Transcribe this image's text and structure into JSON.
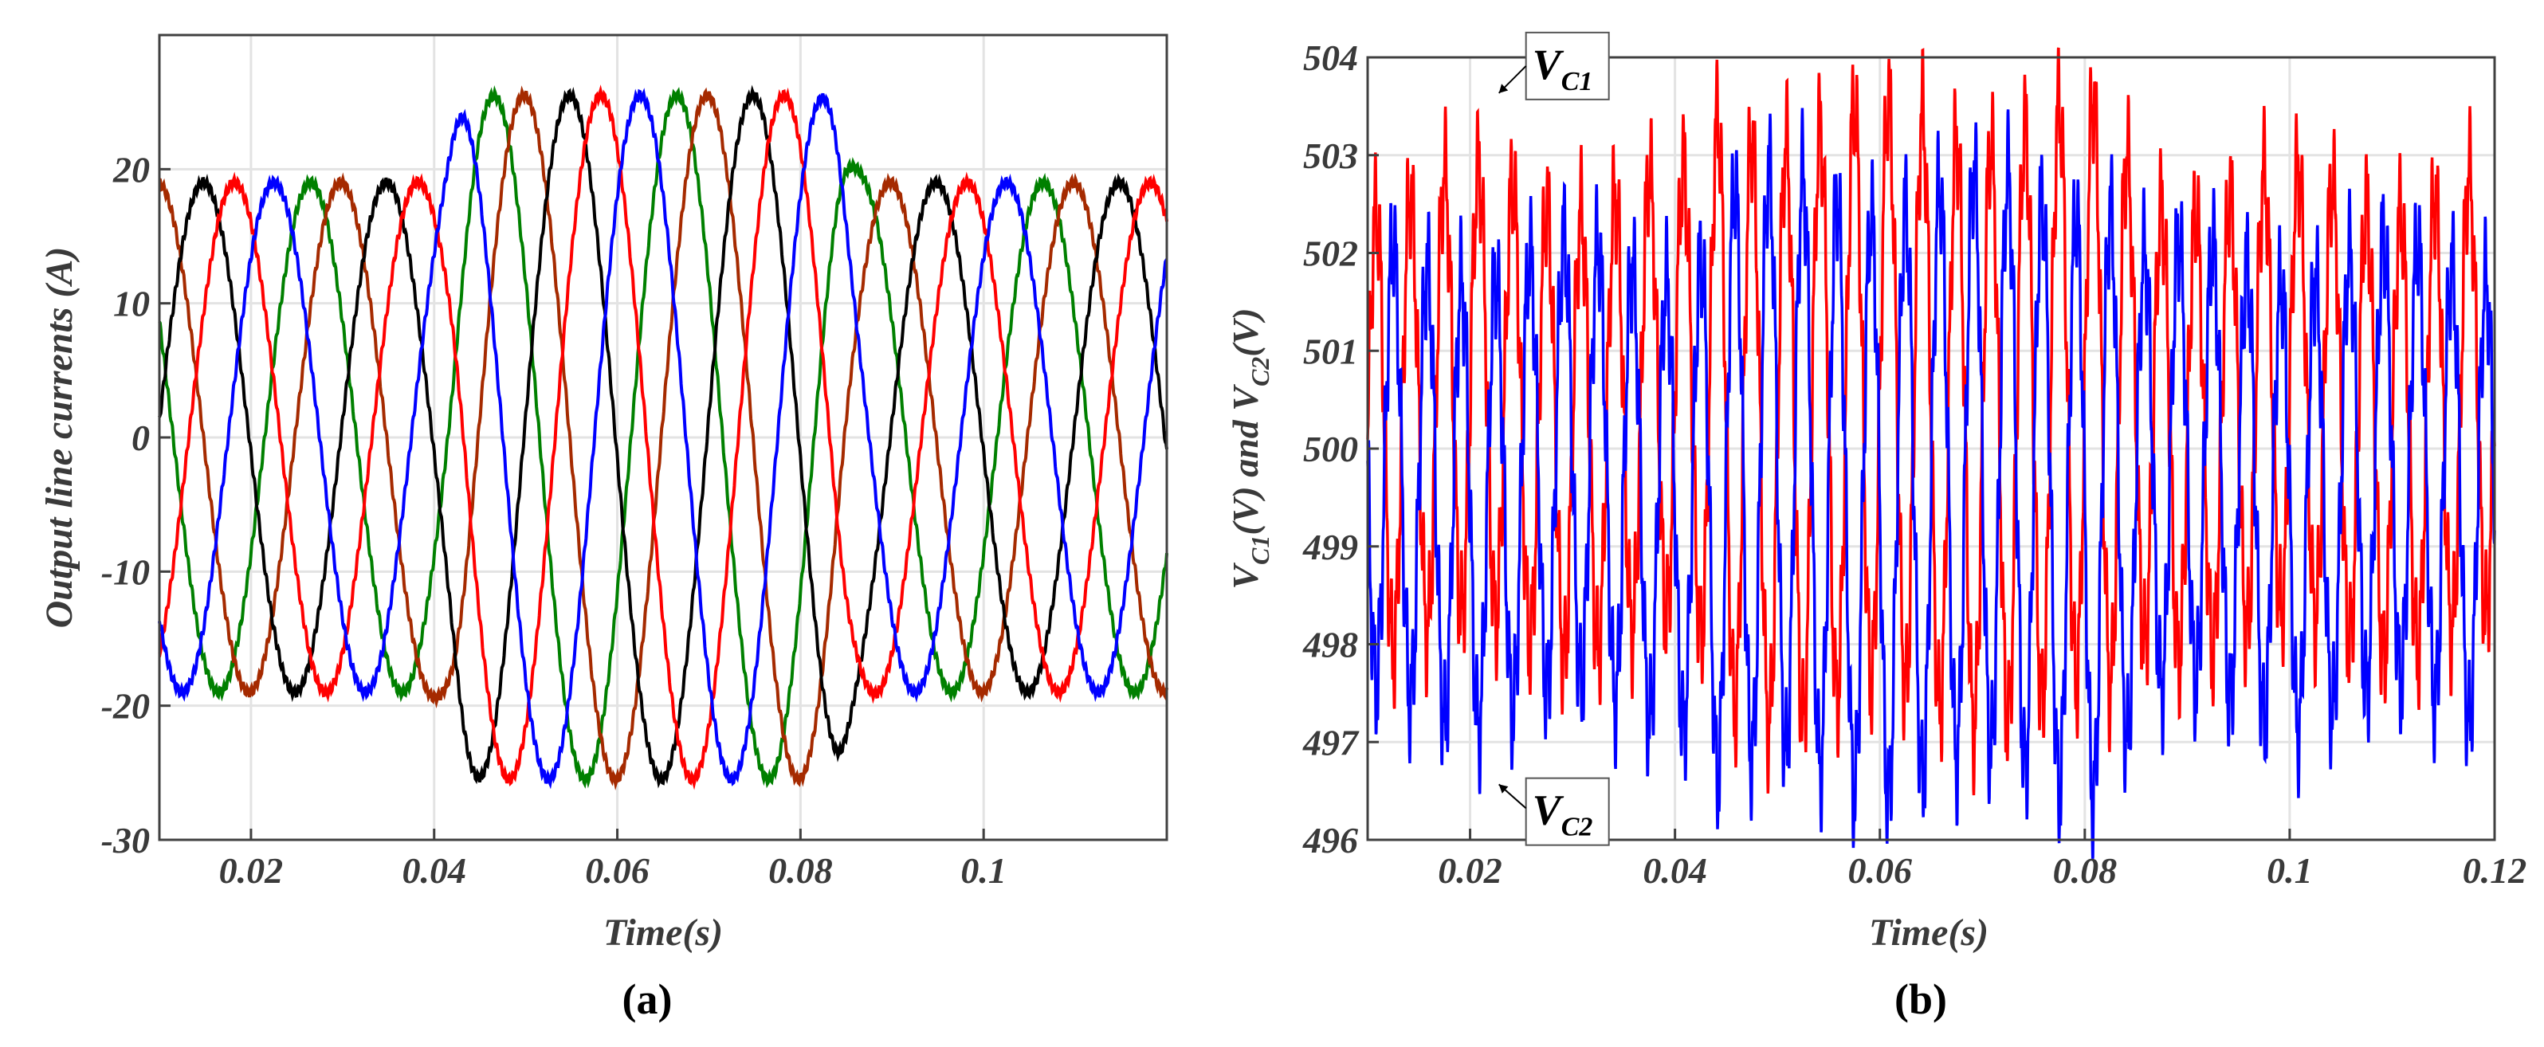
{
  "colors": {
    "blue": "#0000ff",
    "red": "#ff0000",
    "green": "#008000",
    "brown": "#a52a00",
    "black": "#000000",
    "grid": "#e3e3e3",
    "axis": "#404040"
  },
  "chart_data": [
    {
      "type": "line",
      "panel_label": "(a)",
      "xlabel": "Time(s)",
      "ylabel": "Output line currents (A)",
      "xlim": [
        0.01,
        0.12
      ],
      "ylim": [
        -30,
        30
      ],
      "xticks": [
        0.02,
        0.04,
        0.06,
        0.08,
        0.1
      ],
      "xtick_labels": [
        "0.02",
        "0.04",
        "0.06",
        "0.08",
        "0.1"
      ],
      "yticks": [
        -30,
        -20,
        -10,
        0,
        10,
        20
      ],
      "ytick_labels": [
        "-30",
        "-20",
        "-10",
        "0",
        "10",
        "20"
      ],
      "grid": true,
      "frequency_hz": 50,
      "amplitude_before": 19,
      "amplitude_during": 25.5,
      "amplitude_after": 19,
      "disturbance_interval_s": [
        0.04,
        0.085
      ],
      "series": [
        {
          "color": "#008000",
          "peak_time_s": 0.0265
        },
        {
          "color": "#a52a00",
          "peak_time_s": 0.0298
        },
        {
          "color": "#000000",
          "peak_time_s": 0.0348
        },
        {
          "color": "#ff0000",
          "peak_time_s": 0.0182
        },
        {
          "color": "#0000ff",
          "peak_time_s": 0.0225
        }
      ]
    },
    {
      "type": "line",
      "panel_label": "(b)",
      "xlabel": "Time(s)",
      "ylabel": "V_C1(V) and V_C2(V)",
      "ylabel_parts": {
        "v1": "V",
        "s1": "C1",
        "m1": "(V) and ",
        "v2": "V",
        "s2": "C2",
        "m2": "(V)"
      },
      "xlim": [
        0.01,
        0.12
      ],
      "ylim": [
        496,
        504
      ],
      "xticks": [
        0.02,
        0.04,
        0.06,
        0.08,
        0.1,
        0.12
      ],
      "xtick_labels": [
        "0.02",
        "0.04",
        "0.06",
        "0.08",
        "0.1",
        "0.12"
      ],
      "yticks": [
        496,
        497,
        498,
        499,
        500,
        501,
        502,
        503,
        504
      ],
      "ytick_labels": [
        "496",
        "497",
        "498",
        "499",
        "500",
        "501",
        "502",
        "503",
        "504"
      ],
      "grid": true,
      "ripple_frequency_hz": 300,
      "ripple_amplitude_normal_v": 2.3,
      "ripple_amplitude_disturbed_v": 3.0,
      "disturbance_interval_s": [
        0.043,
        0.084
      ],
      "series": [
        {
          "color": "#ff0000",
          "offset_v": 0.6
        },
        {
          "color": "#0000ff",
          "offset_v": -0.6
        }
      ],
      "annotations": [
        {
          "base": "V",
          "sub": "C1",
          "x": 0.0225,
          "y": 503.7
        },
        {
          "base": "V",
          "sub": "C2",
          "x": 0.0225,
          "y": 496.5
        }
      ]
    }
  ]
}
